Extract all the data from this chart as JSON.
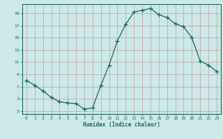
{
  "x": [
    0,
    1,
    2,
    3,
    4,
    5,
    6,
    7,
    8,
    9,
    10,
    11,
    12,
    13,
    14,
    15,
    16,
    17,
    18,
    19,
    20,
    21,
    22,
    23
  ],
  "y": [
    8.0,
    7.2,
    6.3,
    5.2,
    4.5,
    4.3,
    4.2,
    3.3,
    3.5,
    7.2,
    10.5,
    14.5,
    17.2,
    19.2,
    19.5,
    19.8,
    18.8,
    18.3,
    17.3,
    16.8,
    15.0,
    11.2,
    10.5,
    9.5
  ],
  "xlabel": "Humidex (Indice chaleur)",
  "xlim": [
    -0.5,
    23.5
  ],
  "ylim": [
    2.5,
    20.5
  ],
  "yticks": [
    3,
    5,
    7,
    9,
    11,
    13,
    15,
    17,
    19
  ],
  "xticks": [
    0,
    1,
    2,
    3,
    4,
    5,
    6,
    7,
    8,
    9,
    10,
    11,
    12,
    13,
    14,
    15,
    16,
    17,
    18,
    19,
    20,
    21,
    22,
    23
  ],
  "line_color": "#1a6b5a",
  "bg_color": "#cce8e8",
  "grid_color_major": "#aacece",
  "grid_color_minor": "#bbdada",
  "tick_color": "#1a6b5a",
  "label_color": "#1a6b5a",
  "spine_color": "#1a6b5a"
}
